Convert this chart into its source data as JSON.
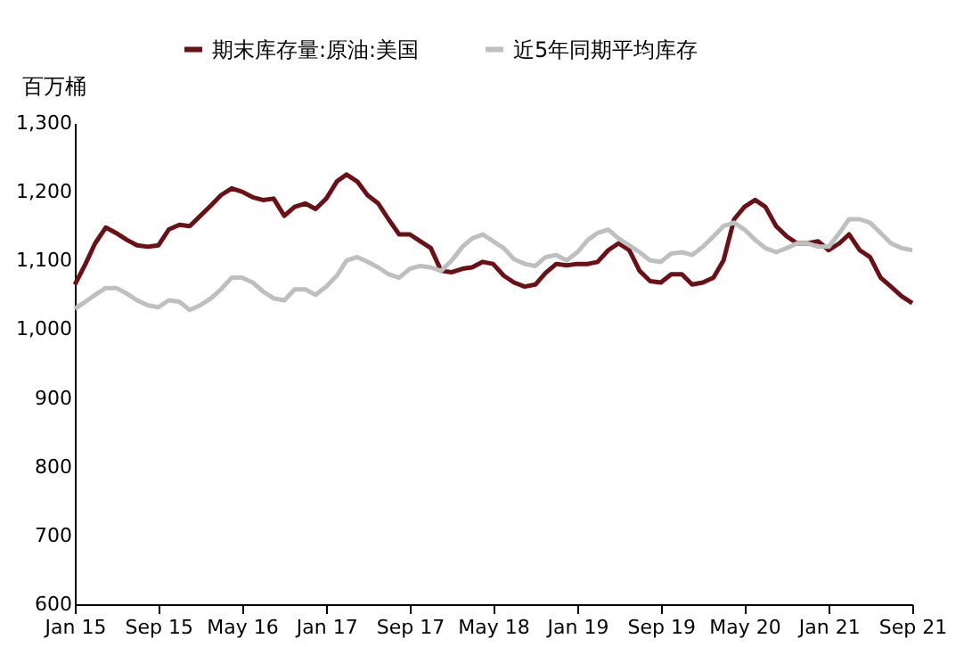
{
  "chart_data": {
    "type": "line",
    "ylabel": "百万桶",
    "x": [
      "2015-01",
      "2015-02",
      "2015-03",
      "2015-04",
      "2015-05",
      "2015-06",
      "2015-07",
      "2015-08",
      "2015-09",
      "2015-10",
      "2015-11",
      "2015-12",
      "2016-01",
      "2016-02",
      "2016-03",
      "2016-04",
      "2016-05",
      "2016-06",
      "2016-07",
      "2016-08",
      "2016-09",
      "2016-10",
      "2016-11",
      "2016-12",
      "2017-01",
      "2017-02",
      "2017-03",
      "2017-04",
      "2017-05",
      "2017-06",
      "2017-07",
      "2017-08",
      "2017-09",
      "2017-10",
      "2017-11",
      "2017-12",
      "2018-01",
      "2018-02",
      "2018-03",
      "2018-04",
      "2018-05",
      "2018-06",
      "2018-07",
      "2018-08",
      "2018-09",
      "2018-10",
      "2018-11",
      "2018-12",
      "2019-01",
      "2019-02",
      "2019-03",
      "2019-04",
      "2019-05",
      "2019-06",
      "2019-07",
      "2019-08",
      "2019-09",
      "2019-10",
      "2019-11",
      "2019-12",
      "2020-01",
      "2020-02",
      "2020-03",
      "2020-04",
      "2020-05",
      "2020-06",
      "2020-07",
      "2020-08",
      "2020-09",
      "2020-10",
      "2020-11",
      "2020-12",
      "2021-01",
      "2021-02",
      "2021-03",
      "2021-04",
      "2021-05",
      "2021-06",
      "2021-07",
      "2021-08",
      "2021-09"
    ],
    "series": [
      {
        "name": "期末库存量:原油:美国",
        "color": "#6b1015",
        "values": [
          1065,
          1095,
          1125,
          1148,
          1140,
          1130,
          1122,
          1120,
          1122,
          1145,
          1152,
          1150,
          1165,
          1180,
          1195,
          1205,
          1200,
          1192,
          1188,
          1190,
          1165,
          1178,
          1183,
          1175,
          1190,
          1215,
          1225,
          1215,
          1195,
          1183,
          1160,
          1138,
          1138,
          1128,
          1118,
          1085,
          1083,
          1088,
          1090,
          1098,
          1095,
          1078,
          1068,
          1062,
          1065,
          1082,
          1095,
          1093,
          1095,
          1095,
          1098,
          1115,
          1125,
          1115,
          1085,
          1070,
          1068,
          1080,
          1080,
          1065,
          1068,
          1075,
          1100,
          1160,
          1178,
          1188,
          1178,
          1150,
          1135,
          1125,
          1125,
          1128,
          1115,
          1125,
          1138,
          1115,
          1105,
          1075,
          1062,
          1048,
          1038
        ]
      },
      {
        "name": "近5年同期平均库存",
        "color": "#bfbfbf",
        "values": [
          1030,
          1040,
          1050,
          1060,
          1060,
          1052,
          1042,
          1035,
          1032,
          1042,
          1040,
          1028,
          1035,
          1045,
          1058,
          1075,
          1075,
          1068,
          1055,
          1045,
          1042,
          1058,
          1058,
          1050,
          1062,
          1078,
          1100,
          1105,
          1098,
          1090,
          1080,
          1075,
          1088,
          1092,
          1090,
          1085,
          1100,
          1120,
          1132,
          1138,
          1128,
          1118,
          1102,
          1095,
          1092,
          1105,
          1108,
          1100,
          1112,
          1130,
          1140,
          1145,
          1132,
          1122,
          1112,
          1100,
          1098,
          1110,
          1112,
          1108,
          1120,
          1135,
          1150,
          1155,
          1145,
          1130,
          1118,
          1112,
          1118,
          1125,
          1125,
          1120,
          1120,
          1140,
          1160,
          1160,
          1155,
          1140,
          1125,
          1118,
          1115
        ]
      }
    ],
    "xlim": [
      "2015-01",
      "2021-09"
    ],
    "xticks": [
      {
        "value": "2015-01",
        "label": "Jan 15"
      },
      {
        "value": "2015-09",
        "label": "Sep 15"
      },
      {
        "value": "2016-05",
        "label": "May 16"
      },
      {
        "value": "2017-01",
        "label": "Jan 17"
      },
      {
        "value": "2017-09",
        "label": "Sep 17"
      },
      {
        "value": "2018-05",
        "label": "May 18"
      },
      {
        "value": "2019-01",
        "label": "Jan 19"
      },
      {
        "value": "2019-09",
        "label": "Sep 19"
      },
      {
        "value": "2020-05",
        "label": "May 20"
      },
      {
        "value": "2021-01",
        "label": "Jan 21"
      },
      {
        "value": "2021-09",
        "label": "Sep 21"
      }
    ],
    "ylim": [
      600,
      1300
    ],
    "yticks": [
      {
        "value": 600,
        "label": "600"
      },
      {
        "value": 700,
        "label": "700"
      },
      {
        "value": 800,
        "label": "800"
      },
      {
        "value": 900,
        "label": "900"
      },
      {
        "value": 1000,
        "label": "1,000"
      },
      {
        "value": 1100,
        "label": "1,100"
      },
      {
        "value": 1200,
        "label": "1,200"
      },
      {
        "value": 1300,
        "label": "1,300"
      }
    ],
    "grid": false,
    "legend": "top",
    "marker": "none",
    "line_style": "solid"
  }
}
